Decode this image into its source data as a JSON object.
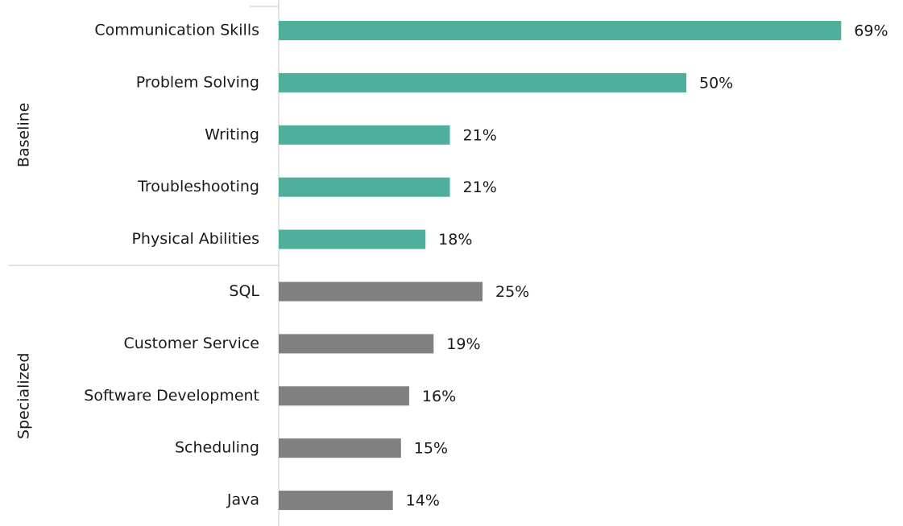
{
  "chart_data": {
    "type": "bar",
    "orientation": "horizontal",
    "xlim": [
      0,
      75
    ],
    "groups": [
      {
        "name": "Baseline",
        "color": "#4daf9c",
        "categories": [
          "Communication Skills",
          "Problem Solving",
          "Writing",
          "Troubleshooting",
          "Physical Abilities"
        ],
        "values": [
          69,
          50,
          21,
          21,
          18
        ],
        "value_labels": [
          "69%",
          "50%",
          "21%",
          "21%",
          "18%"
        ]
      },
      {
        "name": "Specialized",
        "color": "#808080",
        "categories": [
          "SQL",
          "Customer Service",
          "Software Development",
          "Scheduling",
          "Java"
        ],
        "values": [
          25,
          19,
          16,
          15,
          14
        ],
        "value_labels": [
          "25%",
          "19%",
          "16%",
          "15%",
          "14%"
        ]
      }
    ]
  }
}
